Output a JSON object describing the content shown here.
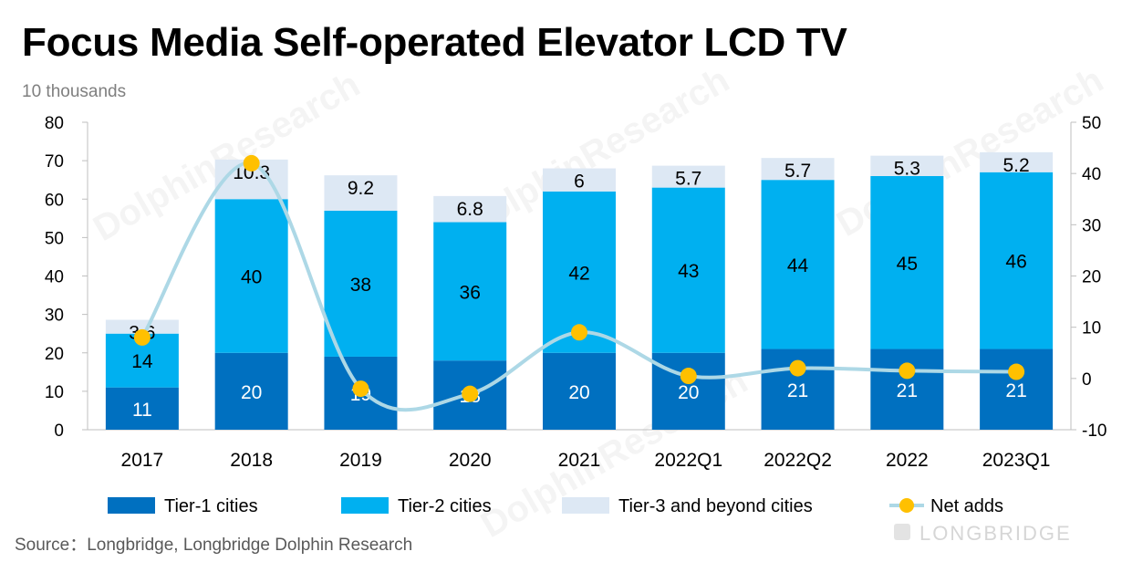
{
  "title": "Focus Media Self-operated Elevator LCD TV",
  "unit_label": "10 thousands",
  "source": "Source：Longbridge, Longbridge Dolphin Research",
  "watermark": "DolphinResearch",
  "brand": "LONGBRIDGE",
  "colors": {
    "tier1": "#0070c0",
    "tier2": "#00b0f0",
    "tier3": "#dde8f4",
    "net_line": "#add8e6",
    "net_marker": "#ffc000",
    "axis": "#bfbfbf"
  },
  "chart_data": {
    "type": "bar",
    "stacked": true,
    "categories": [
      "2017",
      "2018",
      "2019",
      "2020",
      "2021",
      "2022Q1",
      "2022Q2",
      "2022",
      "2023Q1"
    ],
    "series": [
      {
        "name": "Tier-1 cities",
        "axis": "left",
        "type": "bar",
        "values": [
          11,
          20,
          19,
          18,
          20,
          20,
          21,
          21,
          21
        ]
      },
      {
        "name": "Tier-2 cities",
        "axis": "left",
        "type": "bar",
        "values": [
          14,
          40,
          38,
          36,
          42,
          43,
          44,
          45,
          46
        ]
      },
      {
        "name": "Tier-3 and beyond cities",
        "axis": "left",
        "type": "bar",
        "values": [
          3.6,
          10.3,
          9.2,
          6.8,
          6,
          5.7,
          5.7,
          5.3,
          5.2
        ]
      },
      {
        "name": "Net adds",
        "axis": "right",
        "type": "line",
        "values": [
          8,
          42,
          -2,
          -3,
          9,
          0.5,
          2,
          1.5,
          1.3
        ]
      }
    ],
    "y_left": {
      "min": 0,
      "max": 80,
      "ticks": [
        "0",
        "10",
        "20",
        "30",
        "40",
        "50",
        "60",
        "70",
        "80"
      ]
    },
    "y_right": {
      "min": -10,
      "max": 50,
      "ticks": [
        "-10",
        "0",
        "10",
        "20",
        "30",
        "40",
        "50"
      ]
    },
    "legend": {
      "position": "bottom",
      "items": [
        "Tier-1 cities",
        "Tier-2 cities",
        "Tier-3 and beyond cities",
        "Net adds"
      ]
    },
    "grid": false
  }
}
